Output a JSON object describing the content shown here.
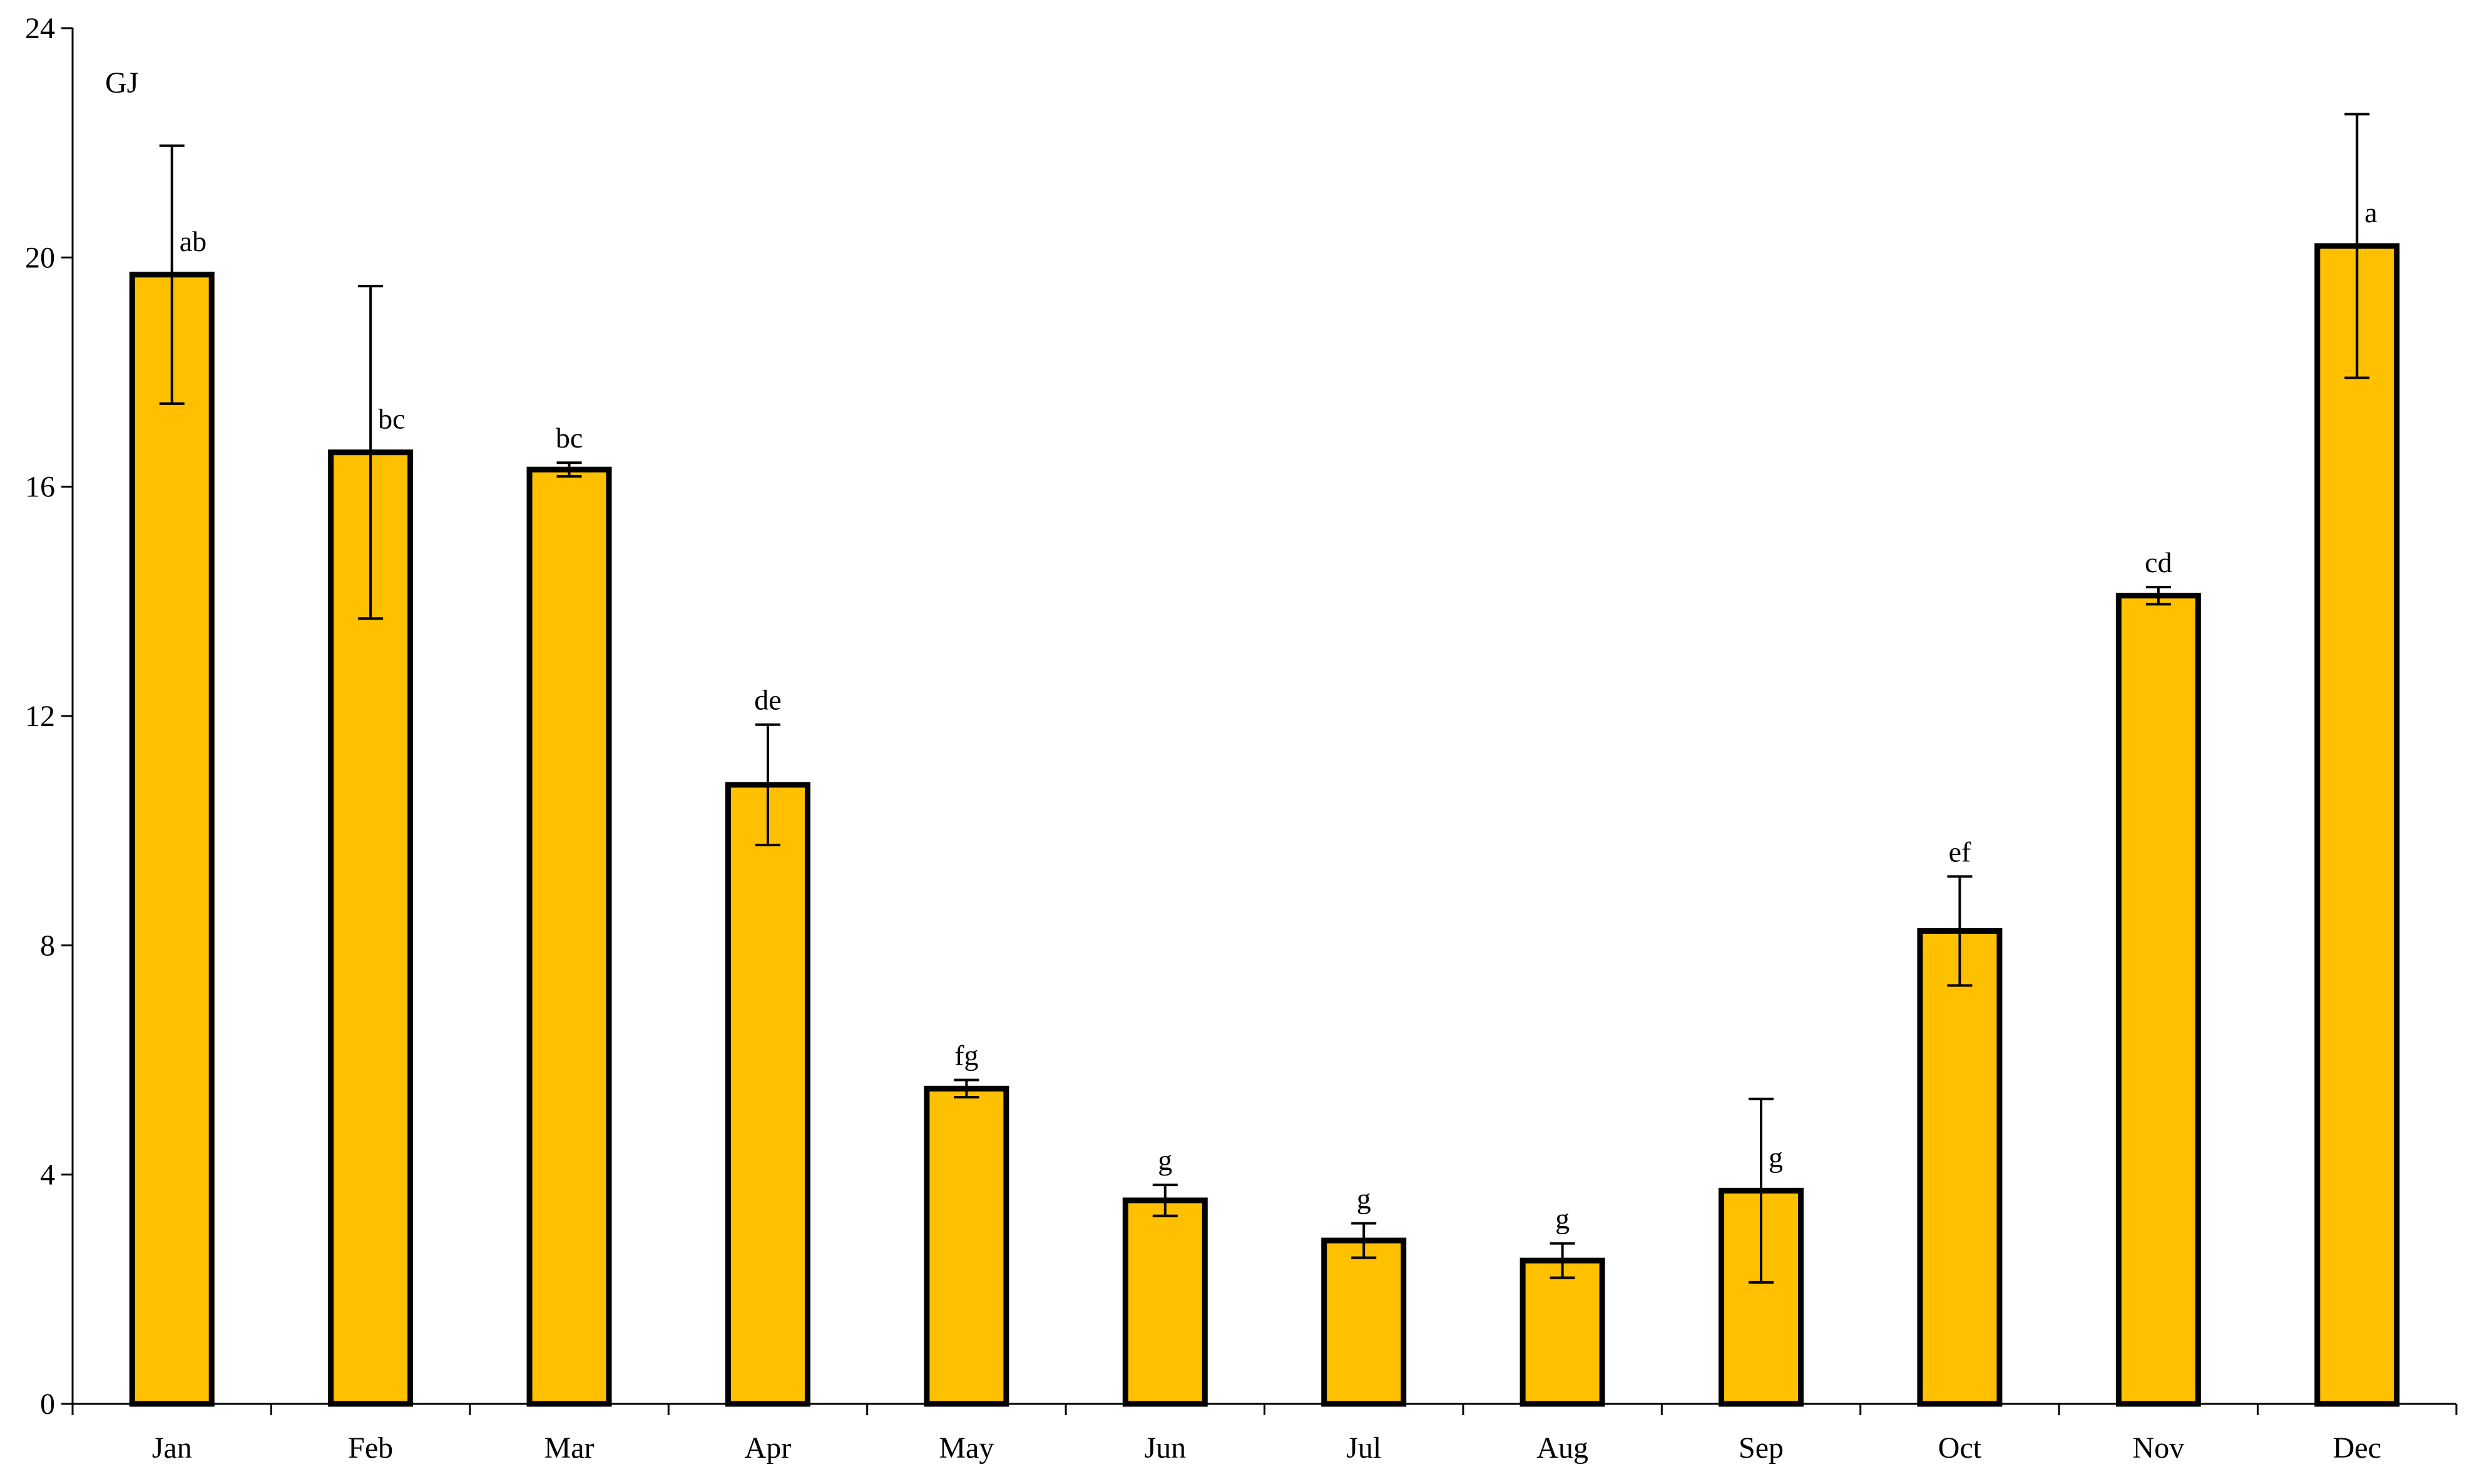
{
  "chart_data": {
    "type": "bar",
    "unit_label": "GJ",
    "categories": [
      "Jan",
      "Feb",
      "Mar",
      "Apr",
      "May",
      "Jun",
      "Jul",
      "Aug",
      "Sep",
      "Oct",
      "Nov",
      "Dec"
    ],
    "values": [
      19.7,
      16.6,
      16.3,
      10.8,
      5.5,
      3.55,
      2.85,
      2.5,
      3.72,
      8.25,
      14.1,
      20.2
    ],
    "errors": [
      2.25,
      2.9,
      0.12,
      1.05,
      0.15,
      0.27,
      0.3,
      0.3,
      1.6,
      0.95,
      0.15,
      2.3
    ],
    "significance_letters": [
      "ab",
      "bc",
      "bc",
      "de",
      "fg",
      "g",
      "g",
      "g",
      "g",
      "ef",
      "cd",
      "a"
    ],
    "ylim": [
      0,
      24
    ],
    "yticks": [
      "0",
      "4",
      "8",
      "12",
      "16",
      "20",
      "24"
    ],
    "bar_color": "#FFC000",
    "bar_edge_color": "#000000",
    "grid": false,
    "legend": "none",
    "xlabel": "",
    "ylabel": ""
  }
}
